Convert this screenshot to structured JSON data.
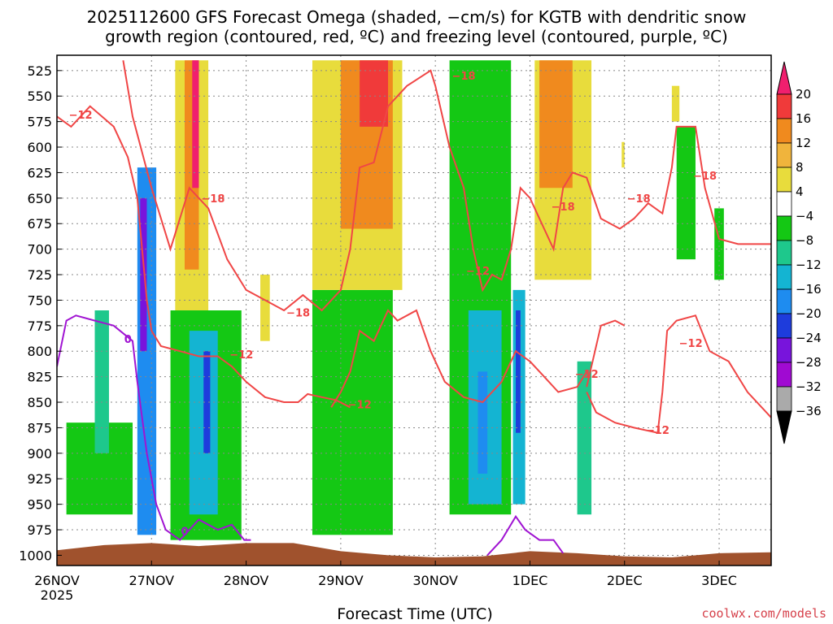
{
  "chart_data": {
    "type": "heatmap",
    "title_line1": "2025112600 GFS Forecast Omega (shaded, −cm/s) for KGTB with dendritic snow",
    "title_line2": "growth region (contoured, red, ºC) and freezing level (contoured, purple, ºC)",
    "xlabel": "Forecast Time (UTC)",
    "credit": "coolwx.com/models",
    "x_ticks": [
      "26NOV",
      "27NOV",
      "28NOV",
      "29NOV",
      "30NOV",
      "1DEC",
      "2DEC",
      "3DEC"
    ],
    "x_year": "2025",
    "y_ticks": [
      "525",
      "550",
      "575",
      "600",
      "625",
      "650",
      "675",
      "700",
      "725",
      "750",
      "775",
      "800",
      "825",
      "850",
      "875",
      "900",
      "925",
      "950",
      "975",
      "1000"
    ],
    "y_top_hpa": 510,
    "y_bottom_hpa": 1010,
    "x_range_days": [
      0,
      7.55
    ],
    "colorbar_labels": [
      "20",
      "16",
      "12",
      "8",
      "4",
      "−4",
      "−8",
      "−12",
      "−16",
      "−20",
      "−24",
      "−28",
      "−32",
      "−36"
    ],
    "colorbar_colors": [
      "#f01f6e",
      "#f03a3a",
      "#f08a1e",
      "#f0b43c",
      "#e8dc3c",
      "#ffffff",
      "#14c814",
      "#1ec88c",
      "#14b4d2",
      "#1e8cf0",
      "#1e3cdc",
      "#7814dc",
      "#a00ad2",
      "#aaaaaa",
      "#000000"
    ],
    "contour_labels_dgz": [
      "−12",
      "−18",
      "−18",
      "−12",
      "−18",
      "−18",
      "−12",
      "−12",
      "−18",
      "−12",
      "−18",
      "−12",
      "−12"
    ],
    "contour_labels_freezing": [
      "0",
      "0"
    ],
    "colors": {
      "dgz": "#f04646",
      "freezing": "#a014d2",
      "terrain": "#a0522d",
      "grid": "#888888"
    },
    "omega_regions": [
      {
        "x0": 0.85,
        "x1": 1.05,
        "p0": 620,
        "p1": 980,
        "level": -20
      },
      {
        "x0": 0.88,
        "x1": 0.95,
        "p0": 650,
        "p1": 800,
        "level": -28
      },
      {
        "x0": 0.1,
        "x1": 0.8,
        "p0": 870,
        "p1": 960,
        "level": -8
      },
      {
        "x0": 0.4,
        "x1": 0.55,
        "p0": 760,
        "p1": 900,
        "level": -12
      },
      {
        "x0": 1.2,
        "x1": 1.95,
        "p0": 760,
        "p1": 985,
        "level": -8
      },
      {
        "x0": 1.4,
        "x1": 1.7,
        "p0": 780,
        "p1": 960,
        "level": -16
      },
      {
        "x0": 1.55,
        "x1": 1.62,
        "p0": 800,
        "p1": 900,
        "level": -24
      },
      {
        "x0": 1.25,
        "x1": 1.6,
        "p0": 515,
        "p1": 760,
        "level": 4
      },
      {
        "x0": 1.35,
        "x1": 1.5,
        "p0": 515,
        "p1": 720,
        "level": 12
      },
      {
        "x0": 1.43,
        "x1": 1.5,
        "p0": 515,
        "p1": 640,
        "level": 20
      },
      {
        "x0": 2.15,
        "x1": 2.25,
        "p0": 725,
        "p1": 790,
        "level": 4
      },
      {
        "x0": 2.7,
        "x1": 3.55,
        "p0": 740,
        "p1": 980,
        "level": -8
      },
      {
        "x0": 2.7,
        "x1": 3.65,
        "p0": 515,
        "p1": 740,
        "level": 4
      },
      {
        "x0": 3.0,
        "x1": 3.55,
        "p0": 515,
        "p1": 680,
        "level": 12
      },
      {
        "x0": 3.2,
        "x1": 3.5,
        "p0": 515,
        "p1": 580,
        "level": 16
      },
      {
        "x0": 4.15,
        "x1": 4.8,
        "p0": 515,
        "p1": 960,
        "level": -8
      },
      {
        "x0": 4.35,
        "x1": 4.7,
        "p0": 760,
        "p1": 950,
        "level": -16
      },
      {
        "x0": 4.45,
        "x1": 4.55,
        "p0": 820,
        "p1": 920,
        "level": -20
      },
      {
        "x0": 4.82,
        "x1": 4.95,
        "p0": 740,
        "p1": 950,
        "level": -16
      },
      {
        "x0": 4.85,
        "x1": 4.9,
        "p0": 760,
        "p1": 880,
        "level": -24
      },
      {
        "x0": 5.05,
        "x1": 5.65,
        "p0": 515,
        "p1": 730,
        "level": 4
      },
      {
        "x0": 5.1,
        "x1": 5.45,
        "p0": 515,
        "p1": 640,
        "level": 12
      },
      {
        "x0": 5.5,
        "x1": 5.65,
        "p0": 810,
        "p1": 960,
        "level": -12
      },
      {
        "x0": 5.97,
        "x1": 6.0,
        "p0": 595,
        "p1": 620,
        "level": 4
      },
      {
        "x0": 6.5,
        "x1": 6.58,
        "p0": 540,
        "p1": 575,
        "level": 4
      },
      {
        "x0": 6.55,
        "x1": 6.75,
        "p0": 580,
        "p1": 710,
        "level": -8
      },
      {
        "x0": 6.95,
        "x1": 7.05,
        "p0": 660,
        "p1": 730,
        "level": -8
      }
    ],
    "dgz_contours": [
      [
        [
          0,
          570
        ],
        [
          0.15,
          580
        ],
        [
          0.35,
          560
        ],
        [
          0.6,
          580
        ],
        [
          0.75,
          610
        ],
        [
          0.85,
          650
        ],
        [
          0.9,
          700
        ],
        [
          0.95,
          750
        ],
        [
          1.0,
          780
        ],
        [
          1.1,
          795
        ],
        [
          1.3,
          800
        ],
        [
          1.5,
          805
        ],
        [
          1.7,
          805
        ],
        [
          1.85,
          815
        ],
        [
          2.0,
          830
        ],
        [
          2.2,
          845
        ],
        [
          2.4,
          850
        ],
        [
          2.55,
          850
        ],
        [
          2.65,
          842
        ],
        [
          2.8,
          845
        ],
        [
          2.95,
          848
        ],
        [
          3.1,
          855
        ]
      ],
      [
        [
          0.7,
          515
        ],
        [
          0.8,
          570
        ],
        [
          1.0,
          640
        ],
        [
          1.2,
          700
        ],
        [
          1.4,
          640
        ],
        [
          1.6,
          660
        ],
        [
          1.8,
          710
        ],
        [
          2.0,
          740
        ],
        [
          2.2,
          750
        ],
        [
          2.4,
          760
        ],
        [
          2.6,
          745
        ],
        [
          2.8,
          760
        ],
        [
          3.0,
          740
        ],
        [
          3.1,
          700
        ],
        [
          3.2,
          620
        ],
        [
          3.35,
          615
        ],
        [
          3.5,
          560
        ],
        [
          3.7,
          540
        ],
        [
          3.95,
          525
        ],
        [
          4.0,
          540
        ],
        [
          4.15,
          600
        ],
        [
          4.3,
          640
        ],
        [
          4.4,
          700
        ],
        [
          4.5,
          740
        ],
        [
          4.6,
          725
        ],
        [
          4.7,
          730
        ],
        [
          4.8,
          700
        ],
        [
          4.9,
          640
        ],
        [
          5.0,
          650
        ],
        [
          5.15,
          680
        ],
        [
          5.25,
          700
        ],
        [
          5.35,
          640
        ],
        [
          5.45,
          625
        ],
        [
          5.6,
          630
        ],
        [
          5.75,
          670
        ],
        [
          5.95,
          680
        ],
        [
          6.1,
          670
        ],
        [
          6.25,
          655
        ],
        [
          6.4,
          665
        ],
        [
          6.5,
          620
        ],
        [
          6.55,
          580
        ],
        [
          6.75,
          580
        ],
        [
          6.85,
          640
        ],
        [
          7.0,
          690
        ],
        [
          7.2,
          695
        ],
        [
          7.55,
          695
        ]
      ],
      [
        [
          2.9,
          855
        ],
        [
          3.0,
          840
        ],
        [
          3.1,
          820
        ],
        [
          3.2,
          780
        ],
        [
          3.35,
          790
        ],
        [
          3.5,
          760
        ],
        [
          3.6,
          770
        ],
        [
          3.8,
          760
        ],
        [
          3.95,
          800
        ],
        [
          4.1,
          830
        ],
        [
          4.3,
          845
        ],
        [
          4.5,
          850
        ],
        [
          4.7,
          830
        ],
        [
          4.85,
          800
        ],
        [
          5.0,
          810
        ],
        [
          5.15,
          825
        ],
        [
          5.3,
          840
        ],
        [
          5.5,
          835
        ],
        [
          5.6,
          820
        ]
      ],
      [
        [
          5.6,
          840
        ],
        [
          5.7,
          860
        ],
        [
          5.9,
          870
        ],
        [
          6.1,
          875
        ],
        [
          6.35,
          880
        ]
      ],
      [
        [
          5.6,
          835
        ],
        [
          5.75,
          775
        ],
        [
          5.9,
          770
        ],
        [
          6.0,
          775
        ]
      ],
      [
        [
          6.35,
          880
        ],
        [
          6.4,
          840
        ],
        [
          6.45,
          780
        ],
        [
          6.55,
          770
        ],
        [
          6.75,
          765
        ],
        [
          6.9,
          800
        ],
        [
          7.1,
          810
        ],
        [
          7.3,
          840
        ],
        [
          7.55,
          865
        ]
      ]
    ],
    "freezing_contours": [
      [
        [
          0,
          815
        ],
        [
          0.1,
          770
        ],
        [
          0.2,
          765
        ],
        [
          0.4,
          770
        ],
        [
          0.6,
          775
        ],
        [
          0.8,
          790
        ],
        [
          0.85,
          830
        ],
        [
          0.95,
          900
        ],
        [
          1.05,
          950
        ],
        [
          1.15,
          975
        ],
        [
          1.3,
          985
        ],
        [
          1.5,
          965
        ],
        [
          1.7,
          975
        ],
        [
          1.85,
          970
        ],
        [
          1.98,
          985
        ],
        [
          2.05,
          985
        ]
      ],
      [
        [
          4.55,
          1000
        ],
        [
          4.7,
          985
        ],
        [
          4.85,
          962
        ],
        [
          4.95,
          975
        ],
        [
          5.1,
          985
        ],
        [
          5.25,
          985
        ],
        [
          5.35,
          998
        ]
      ]
    ],
    "terrain_profile": [
      [
        0,
        995
      ],
      [
        0.5,
        990
      ],
      [
        1.0,
        988
      ],
      [
        1.5,
        991
      ],
      [
        2.0,
        988
      ],
      [
        2.5,
        988
      ],
      [
        2.75,
        992
      ],
      [
        3.0,
        996
      ],
      [
        3.5,
        1000
      ],
      [
        4.0,
        1002
      ],
      [
        4.5,
        1001
      ],
      [
        5.0,
        996
      ],
      [
        5.5,
        998
      ],
      [
        6.0,
        1001
      ],
      [
        6.5,
        1002
      ],
      [
        7.0,
        998
      ],
      [
        7.55,
        997
      ]
    ]
  }
}
